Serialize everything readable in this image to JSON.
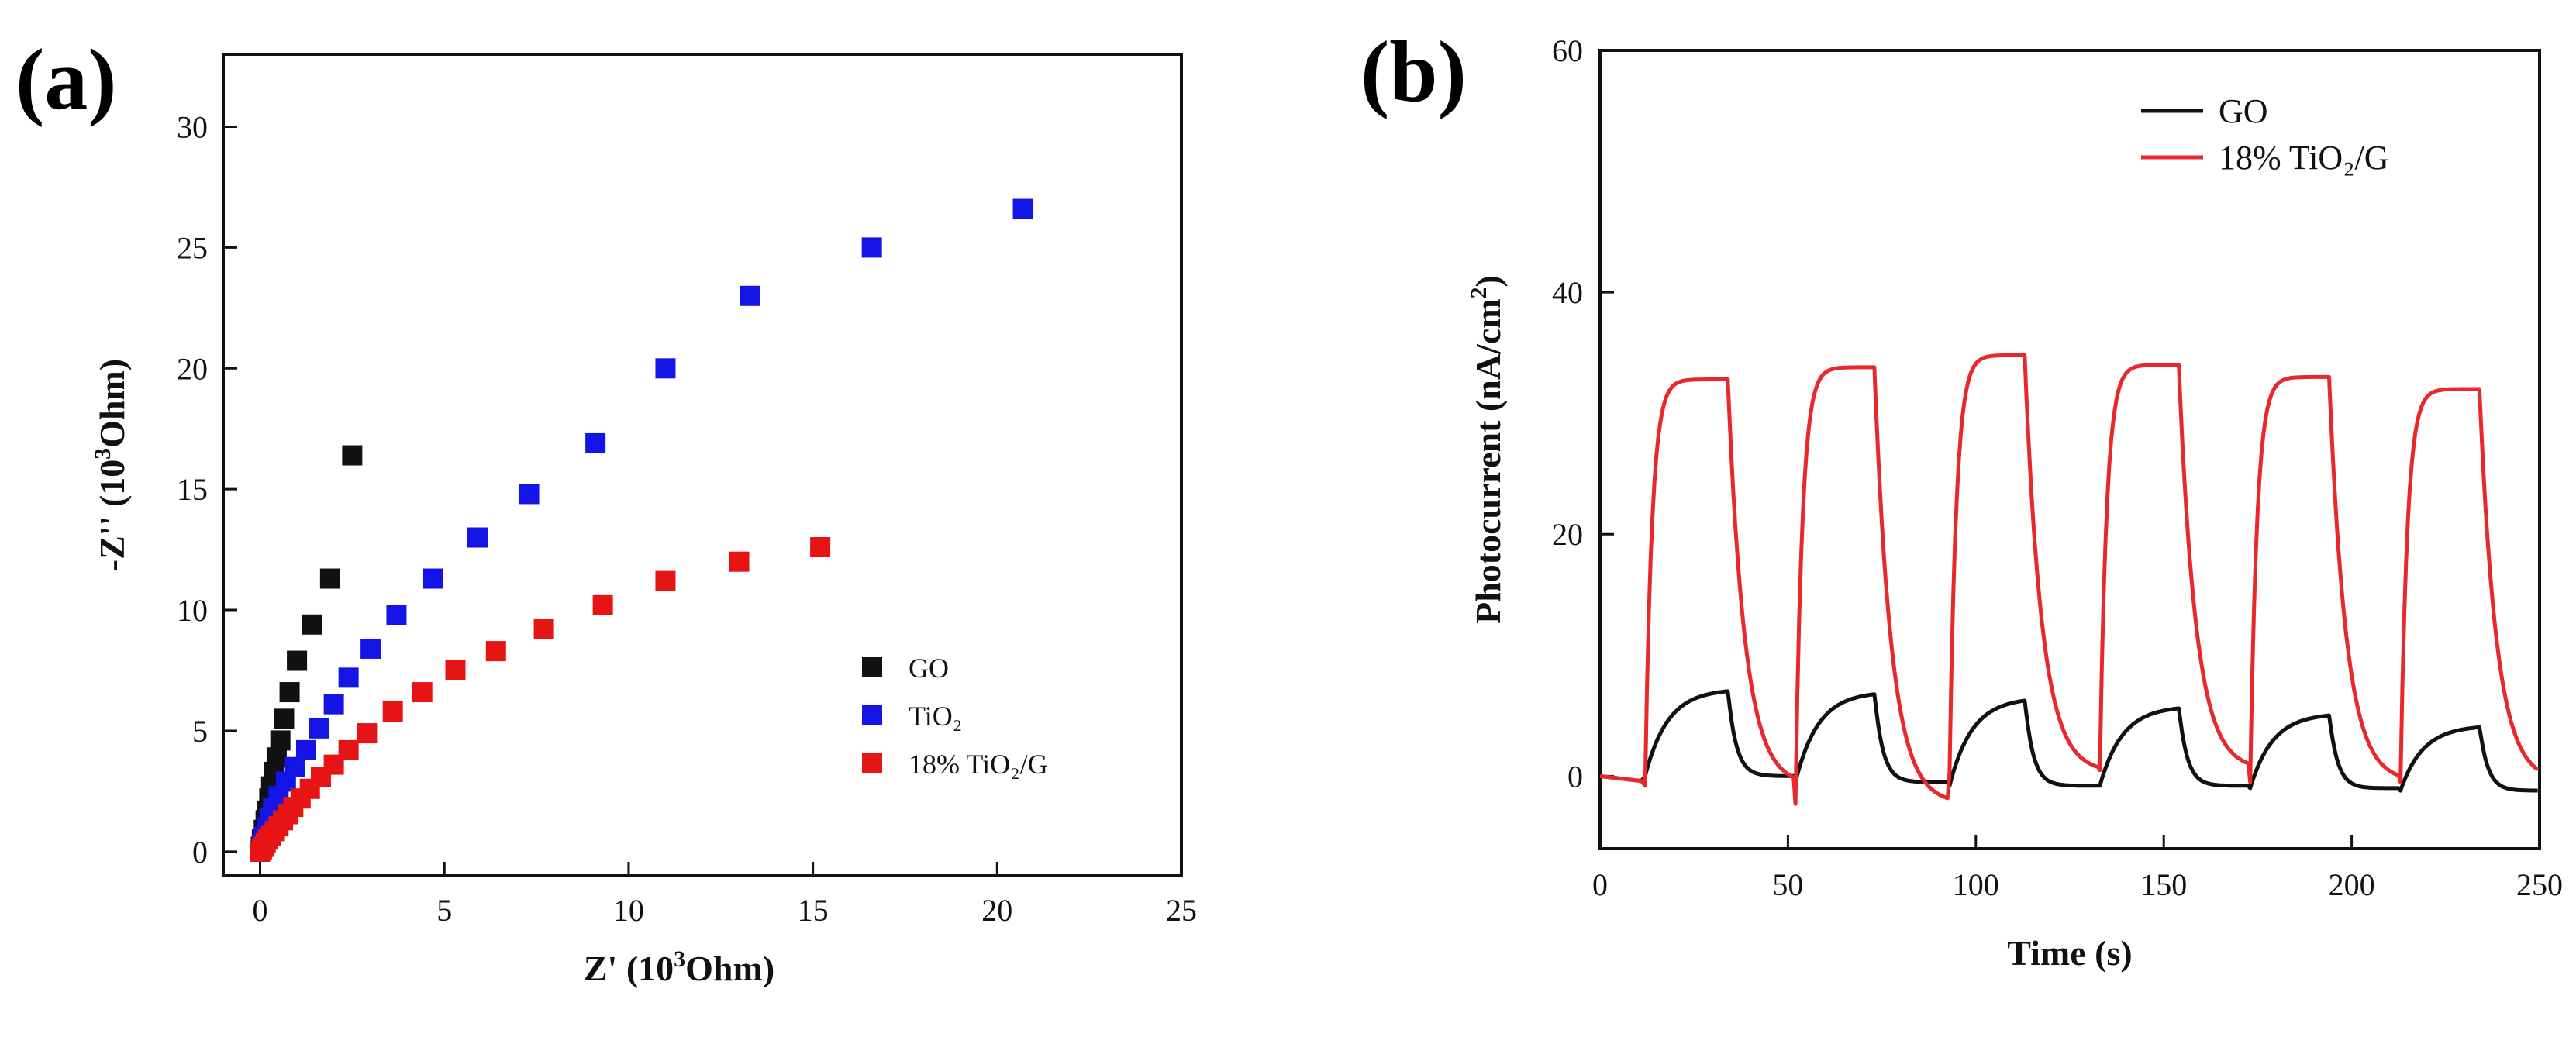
{
  "chart_data": [
    {
      "panel": "(a)",
      "type": "scatter",
      "xlabel": "Z' (10",
      "xlabel_sup": "3",
      "xlabel_tail": "Ohm)",
      "ylabel": "-Z'' (10",
      "ylabel_sup": "3",
      "ylabel_tail": "Ohm)",
      "xlim": [
        -1,
        25
      ],
      "ylim": [
        -1,
        33
      ],
      "xticks": [
        0,
        5,
        10,
        15,
        20,
        25
      ],
      "yticks": [
        0,
        5,
        10,
        15,
        20,
        25,
        30
      ],
      "legend_position": "lower-right",
      "series": [
        {
          "name": "GO",
          "color": "#111111",
          "x": [
            0.0,
            0.02,
            0.05,
            0.1,
            0.15,
            0.2,
            0.25,
            0.3,
            0.38,
            0.45,
            0.55,
            0.65,
            0.8,
            1.0,
            1.4,
            1.9,
            2.5
          ],
          "y": [
            0.0,
            0.2,
            0.5,
            0.9,
            1.3,
            1.7,
            2.2,
            2.7,
            3.3,
            3.9,
            4.6,
            5.5,
            6.6,
            7.9,
            9.4,
            11.3,
            16.4
          ]
        },
        {
          "name": "TiO₂",
          "color": "#1414e6",
          "x": [
            0.0,
            0.05,
            0.1,
            0.18,
            0.26,
            0.35,
            0.5,
            0.7,
            0.95,
            1.25,
            1.6,
            2.0,
            2.4,
            3.0,
            3.7,
            4.7,
            5.9,
            7.3,
            9.1,
            11.0,
            13.3,
            16.6,
            20.7
          ],
          "y": [
            0.0,
            0.3,
            0.6,
            1.0,
            1.4,
            1.8,
            2.3,
            2.9,
            3.5,
            4.2,
            5.1,
            6.1,
            7.2,
            8.4,
            9.8,
            11.3,
            13.0,
            14.8,
            16.9,
            20.0,
            23.0,
            25.0,
            26.6
          ]
        },
        {
          "name": "18% TiO₂/G",
          "color": "#e61414",
          "x": [
            0.0,
            0.05,
            0.1,
            0.15,
            0.22,
            0.3,
            0.4,
            0.5,
            0.62,
            0.75,
            0.9,
            1.1,
            1.35,
            1.65,
            2.0,
            2.4,
            2.9,
            3.6,
            4.4,
            5.3,
            6.4,
            7.7,
            9.3,
            11.0,
            13.0,
            15.2
          ],
          "y": [
            0.0,
            0.1,
            0.2,
            0.35,
            0.5,
            0.65,
            0.85,
            1.05,
            1.3,
            1.55,
            1.85,
            2.2,
            2.6,
            3.1,
            3.6,
            4.2,
            4.9,
            5.8,
            6.6,
            7.5,
            8.3,
            9.2,
            10.2,
            11.2,
            12.0,
            12.6
          ]
        }
      ]
    },
    {
      "panel": "(b)",
      "type": "line",
      "xlabel": "Time (s)",
      "ylabel": "Photocurrent (nA/cm",
      "ylabel_sup": "2",
      "ylabel_tail": ")",
      "xlim": [
        0,
        250
      ],
      "ylim": [
        -6,
        60
      ],
      "xticks": [
        0,
        50,
        100,
        150,
        200,
        250
      ],
      "yticks": [
        0,
        20,
        40,
        60
      ],
      "legend_position": "top-right",
      "light_on_s": [
        12,
        52,
        93,
        133,
        173,
        213
      ],
      "light_off_s": [
        34,
        73,
        113,
        154,
        194,
        234
      ],
      "series": [
        {
          "name": "GO",
          "color": "#111111",
          "on_peak": [
            7.2,
            7.0,
            6.5,
            5.8,
            5.2,
            4.2
          ],
          "off_min": [
            0.0,
            -0.5,
            -0.8,
            -0.8,
            -1.0,
            -1.2
          ]
        },
        {
          "name": "18% TiO₂/G",
          "color": "#e8282a",
          "on_peak": [
            32.8,
            33.8,
            34.8,
            34.0,
            33.0,
            32.0
          ],
          "off_min": [
            -0.8,
            -2.3,
            0.3,
            0.5,
            -0.5,
            -0.5
          ]
        }
      ]
    }
  ]
}
